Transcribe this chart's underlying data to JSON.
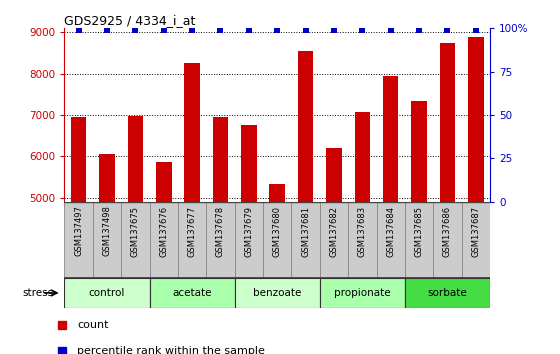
{
  "title": "GDS2925 / 4334_i_at",
  "samples": [
    "GSM137497",
    "GSM137498",
    "GSM137675",
    "GSM137676",
    "GSM137677",
    "GSM137678",
    "GSM137679",
    "GSM137680",
    "GSM137681",
    "GSM137682",
    "GSM137683",
    "GSM137684",
    "GSM137685",
    "GSM137686",
    "GSM137687"
  ],
  "counts": [
    6950,
    6050,
    6980,
    5870,
    8270,
    6960,
    6750,
    5340,
    8560,
    6200,
    7080,
    7950,
    7340,
    8750,
    8900
  ],
  "percentiles": [
    99,
    99,
    99,
    99,
    99,
    99,
    99,
    99,
    99,
    99,
    99,
    99,
    99,
    99,
    99
  ],
  "bar_color": "#cc0000",
  "percentile_color": "#0000cc",
  "ylim_left": [
    4900,
    9100
  ],
  "ylim_right": [
    0,
    100
  ],
  "yticks_left": [
    5000,
    6000,
    7000,
    8000,
    9000
  ],
  "yticks_right": [
    0,
    25,
    50,
    75,
    100
  ],
  "ytick_labels_right": [
    "0",
    "25",
    "50",
    "75",
    "100%"
  ],
  "groups": [
    {
      "name": "control",
      "start": 0,
      "end": 2,
      "color": "#ccffcc"
    },
    {
      "name": "acetate",
      "start": 3,
      "end": 5,
      "color": "#aaffaa"
    },
    {
      "name": "benzoate",
      "start": 6,
      "end": 8,
      "color": "#ccffcc"
    },
    {
      "name": "propionate",
      "start": 9,
      "end": 11,
      "color": "#aaffaa"
    },
    {
      "name": "sorbate",
      "start": 12,
      "end": 14,
      "color": "#44dd44"
    }
  ],
  "stress_label": "stress",
  "legend_count_label": "count",
  "legend_percentile_label": "percentile rank within the sample",
  "bar_color_legend": "#cc0000",
  "percentile_color_legend": "#0000cc",
  "tick_color_left": "#cc0000",
  "tick_color_right": "#0000cc",
  "sample_box_color": "#cccccc",
  "bar_width": 0.55
}
